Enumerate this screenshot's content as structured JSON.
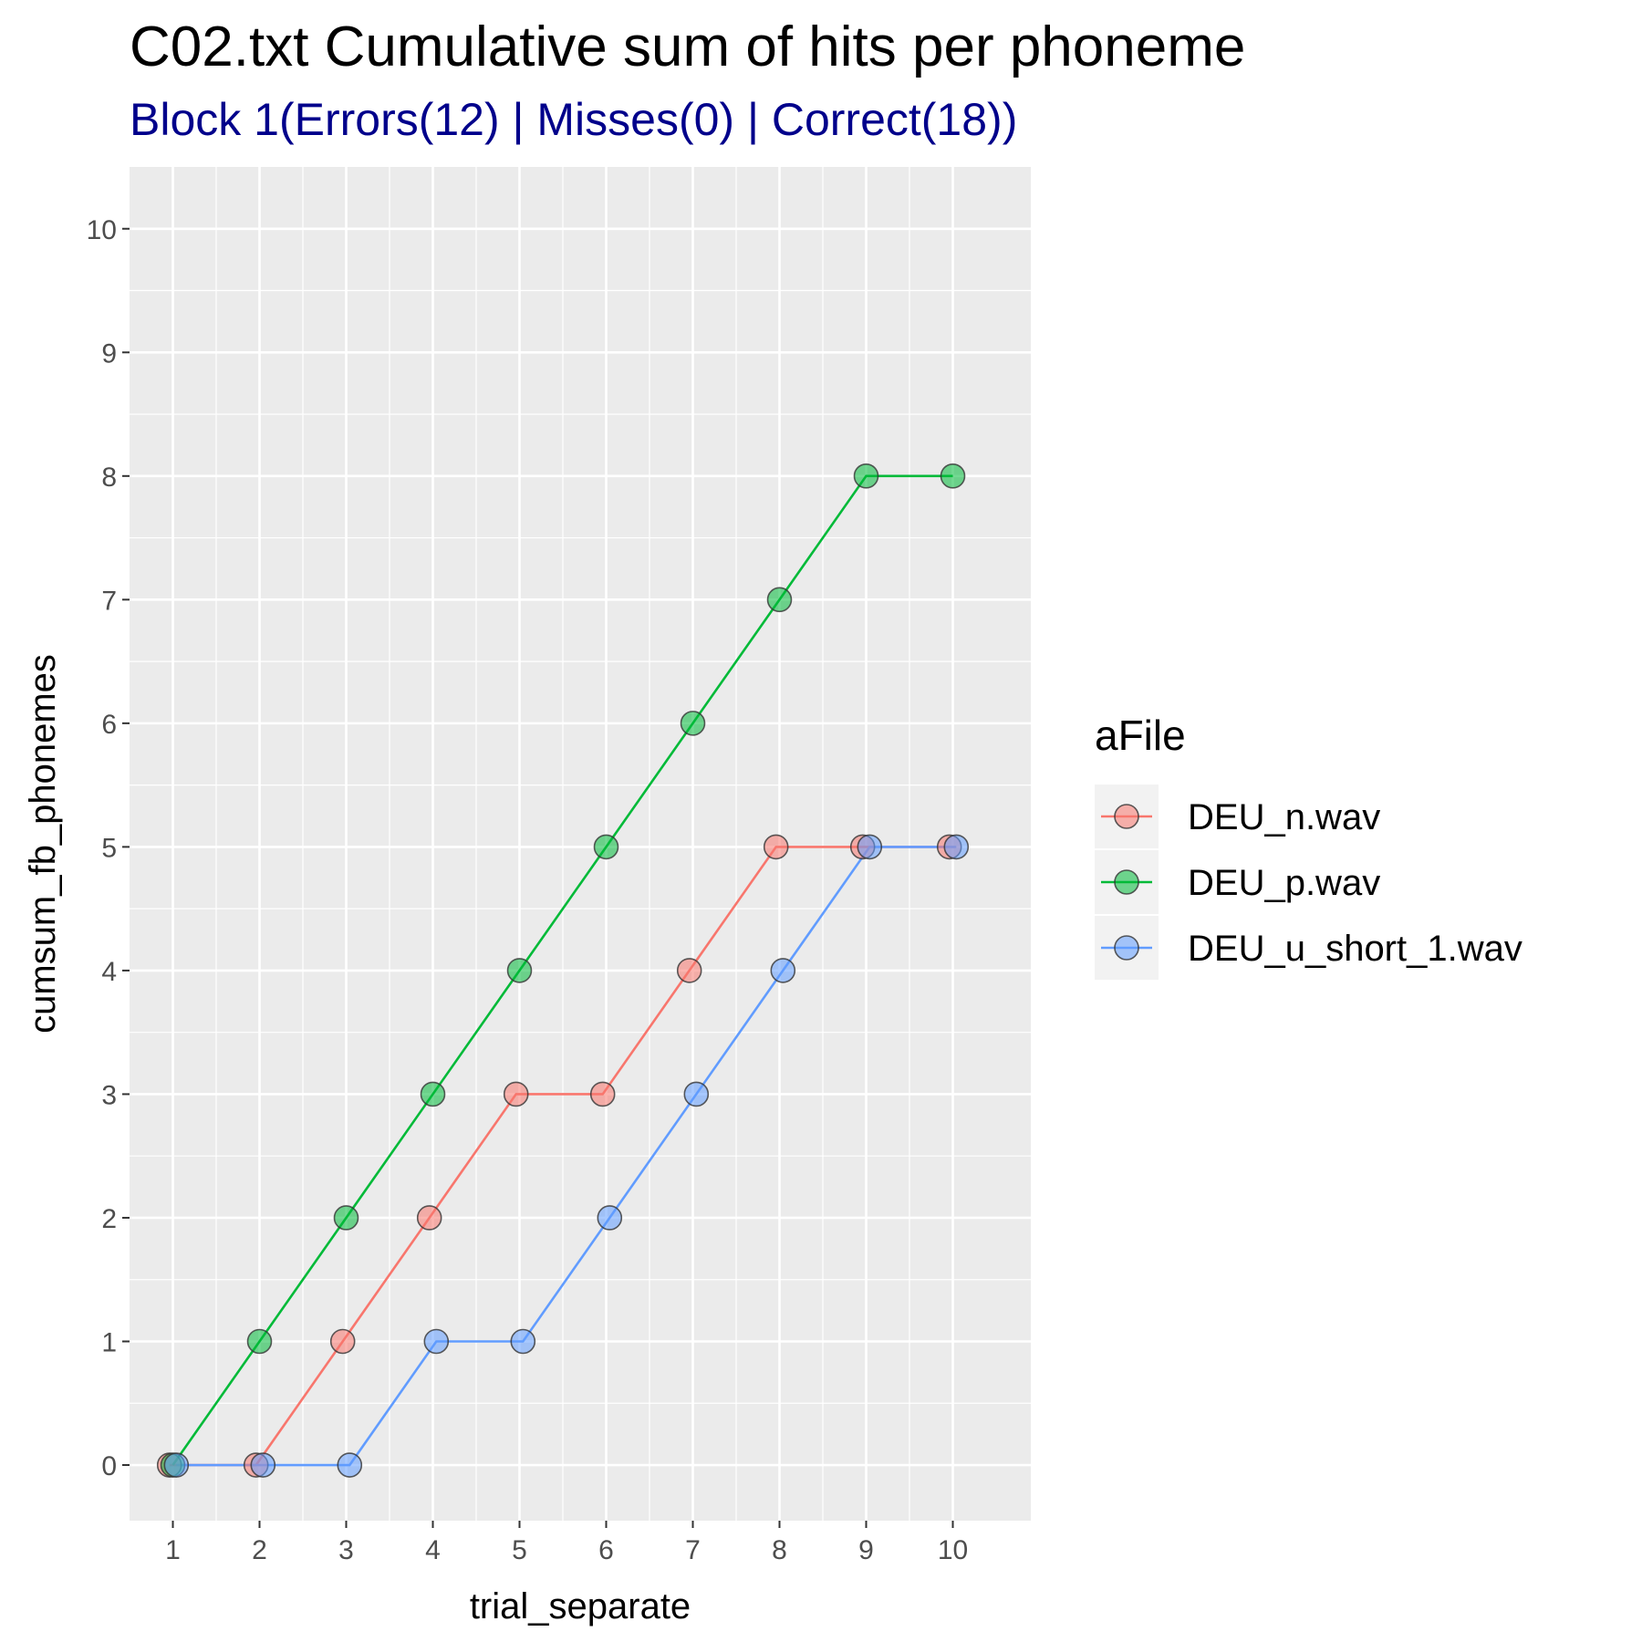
{
  "chart_data": {
    "type": "line",
    "title": "C02.txt Cumulative sum of hits per phoneme",
    "subtitle": "Block 1(Errors(12) | Misses(0) | Correct(18))",
    "xlabel": "trial_separate",
    "ylabel": "cumsum_fb_phonemes",
    "x_ticks": [
      "1",
      "2",
      "3",
      "4",
      "5",
      "6",
      "7",
      "8",
      "9",
      "10"
    ],
    "y_ticks": [
      "0",
      "1",
      "2",
      "3",
      "4",
      "5",
      "6",
      "7",
      "8",
      "9",
      "10"
    ],
    "xlim": [
      0.5,
      10.9
    ],
    "ylim": [
      -0.45,
      10.5
    ],
    "grid": true,
    "legend": {
      "title": "aFile",
      "placement": "right"
    },
    "series": [
      {
        "name": "DEU_n.wav",
        "color": "#F8766D",
        "x": [
          1,
          2,
          3,
          4,
          5,
          6,
          7,
          8,
          9,
          10
        ],
        "y": [
          0,
          0,
          1,
          2,
          3,
          3,
          4,
          5,
          5,
          5
        ]
      },
      {
        "name": "DEU_p.wav",
        "color": "#00BA38",
        "x": [
          1,
          2,
          3,
          4,
          5,
          6,
          7,
          8,
          9,
          10
        ],
        "y": [
          0,
          1,
          2,
          3,
          4,
          5,
          6,
          7,
          8,
          8
        ]
      },
      {
        "name": "DEU_u_short_1.wav",
        "color": "#619CFF",
        "x": [
          1,
          2,
          3,
          4,
          5,
          6,
          7,
          8,
          9,
          10
        ],
        "y": [
          0,
          0,
          0,
          1,
          1,
          2,
          3,
          4,
          5,
          5
        ]
      }
    ],
    "colors": {
      "panel_background": "#EBEBEB",
      "grid": "#FFFFFF",
      "subtitle": "#00008B",
      "legend_key_background": "#F2F2F2"
    }
  }
}
